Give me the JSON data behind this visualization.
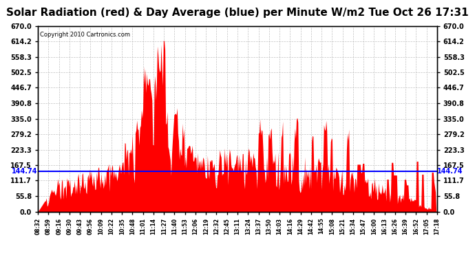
{
  "title": "Solar Radiation (red) & Day Average (blue) per Minute W/m2 Tue Oct 26 17:31",
  "copyright": "Copyright 2010 Cartronics.com",
  "y_min": 0.0,
  "y_max": 670.0,
  "y_ticks": [
    0.0,
    55.8,
    111.7,
    167.5,
    223.3,
    279.2,
    335.0,
    390.8,
    446.7,
    502.5,
    558.3,
    614.2,
    670.0
  ],
  "day_average": 144.74,
  "bar_color": "#FF0000",
  "avg_line_color": "#0000FF",
  "background_color": "#FFFFFF",
  "grid_color": "#BBBBBB",
  "title_fontsize": 11,
  "x_labels": [
    "08:32",
    "08:59",
    "09:16",
    "09:30",
    "09:43",
    "09:56",
    "10:09",
    "10:22",
    "10:35",
    "10:48",
    "11:01",
    "11:14",
    "11:27",
    "11:40",
    "11:53",
    "12:06",
    "12:19",
    "12:32",
    "12:45",
    "13:11",
    "13:24",
    "13:37",
    "13:50",
    "14:03",
    "14:16",
    "14:29",
    "14:42",
    "14:55",
    "15:08",
    "15:21",
    "15:34",
    "15:47",
    "16:00",
    "16:13",
    "16:26",
    "16:39",
    "16:52",
    "17:05",
    "17:18"
  ]
}
